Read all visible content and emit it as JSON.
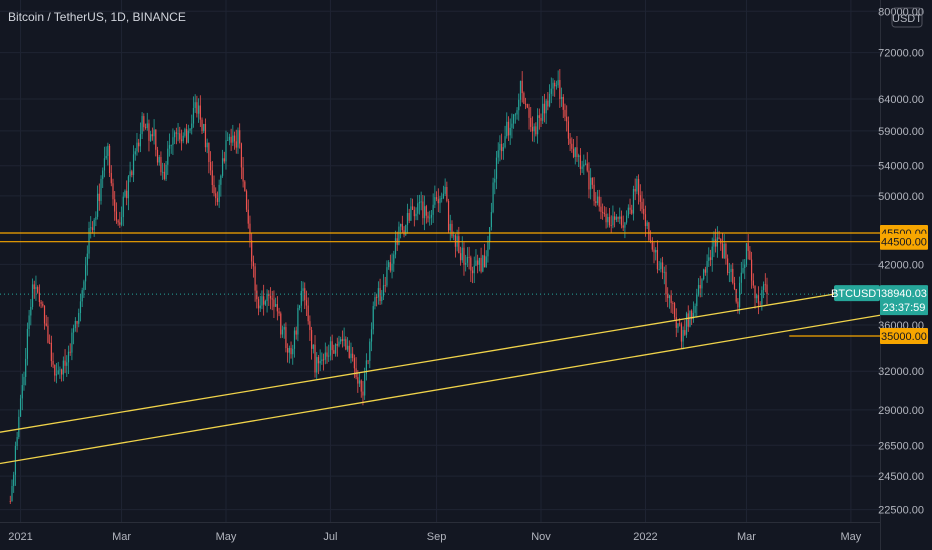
{
  "chart_data": {
    "type": "candlestick",
    "title": "Bitcoin / TetherUS, 1D, BINANCE",
    "symbol": "BTCUSDT",
    "currency": "USDT",
    "y_scale": "log",
    "ylim": [
      21800,
      81500
    ],
    "y_ticks": [
      {
        "value": 80000,
        "label": "80000.00"
      },
      {
        "value": 72000,
        "label": "72000.00"
      },
      {
        "value": 64000,
        "label": "64000.00"
      },
      {
        "value": 59000,
        "label": "59000.00"
      },
      {
        "value": 54000,
        "label": "54000.00"
      },
      {
        "value": 50000,
        "label": "50000.00"
      },
      {
        "value": 42000,
        "label": "42000.00"
      },
      {
        "value": 36000,
        "label": "36000.00"
      },
      {
        "value": 32000,
        "label": "32000.00"
      },
      {
        "value": 29000,
        "label": "29000.00"
      },
      {
        "value": 26500,
        "label": "26500.00"
      },
      {
        "value": 24500,
        "label": "24500.00"
      },
      {
        "value": 22500,
        "label": "22500.00"
      }
    ],
    "xlim": [
      "2020-12-20",
      "2022-05-18"
    ],
    "x_ticks": [
      {
        "date": "2021-01-01",
        "label": "2021"
      },
      {
        "date": "2021-03-01",
        "label": "Mar"
      },
      {
        "date": "2021-05-01",
        "label": "May"
      },
      {
        "date": "2021-07-01",
        "label": "Jul"
      },
      {
        "date": "2021-09-01",
        "label": "Sep"
      },
      {
        "date": "2021-11-01",
        "label": "Nov"
      },
      {
        "date": "2022-01-01",
        "label": "2022"
      },
      {
        "date": "2022-03-01",
        "label": "Mar"
      },
      {
        "date": "2022-05-01",
        "label": "May"
      }
    ],
    "price_path": [
      [
        "2020-12-26",
        23000
      ],
      [
        "2021-01-03",
        32000
      ],
      [
        "2021-01-08",
        40000
      ],
      [
        "2021-01-14",
        37000
      ],
      [
        "2021-01-21",
        31500
      ],
      [
        "2021-01-29",
        33500
      ],
      [
        "2021-02-05",
        38000
      ],
      [
        "2021-02-10",
        45500
      ],
      [
        "2021-02-16",
        50000
      ],
      [
        "2021-02-21",
        56500
      ],
      [
        "2021-02-26",
        46000
      ],
      [
        "2021-03-03",
        49500
      ],
      [
        "2021-03-13",
        60000
      ],
      [
        "2021-03-20",
        58000
      ],
      [
        "2021-03-25",
        52500
      ],
      [
        "2021-04-01",
        59000
      ],
      [
        "2021-04-08",
        58000
      ],
      [
        "2021-04-14",
        63000
      ],
      [
        "2021-04-20",
        56500
      ],
      [
        "2021-04-25",
        49000
      ],
      [
        "2021-05-01",
        57000
      ],
      [
        "2021-05-08",
        58000
      ],
      [
        "2021-05-12",
        50000
      ],
      [
        "2021-05-19",
        38000
      ],
      [
        "2021-05-25",
        38500
      ],
      [
        "2021-06-01",
        36500
      ],
      [
        "2021-06-08",
        33000
      ],
      [
        "2021-06-15",
        40000
      ],
      [
        "2021-06-22",
        32500
      ],
      [
        "2021-07-01",
        34000
      ],
      [
        "2021-07-10",
        34500
      ],
      [
        "2021-07-20",
        30000
      ],
      [
        "2021-07-26",
        37500
      ],
      [
        "2021-08-01",
        40000
      ],
      [
        "2021-08-10",
        45500
      ],
      [
        "2021-08-20",
        48500
      ],
      [
        "2021-08-28",
        48000
      ],
      [
        "2021-09-06",
        51500
      ],
      [
        "2021-09-08",
        46000
      ],
      [
        "2021-09-21",
        41500
      ],
      [
        "2021-09-29",
        42000
      ],
      [
        "2021-10-06",
        55000
      ],
      [
        "2021-10-15",
        61000
      ],
      [
        "2021-10-20",
        65500
      ],
      [
        "2021-10-27",
        58500
      ],
      [
        "2021-11-03",
        62500
      ],
      [
        "2021-11-10",
        67500
      ],
      [
        "2021-11-18",
        57000
      ],
      [
        "2021-11-26",
        54000
      ],
      [
        "2021-12-04",
        49000
      ],
      [
        "2021-12-10",
        47500
      ],
      [
        "2021-12-20",
        46500
      ],
      [
        "2021-12-27",
        51000
      ],
      [
        "2022-01-05",
        43500
      ],
      [
        "2022-01-10",
        41500
      ],
      [
        "2022-01-22",
        35000
      ],
      [
        "2022-01-27",
        37000
      ],
      [
        "2022-02-05",
        41500
      ],
      [
        "2022-02-10",
        44500
      ],
      [
        "2022-02-16",
        43500
      ],
      [
        "2022-02-24",
        38000
      ],
      [
        "2022-03-01",
        44000
      ],
      [
        "2022-03-07",
        38000
      ],
      [
        "2022-03-10",
        39000
      ],
      [
        "2022-03-13",
        38940
      ]
    ],
    "horizontal_lines": [
      {
        "value": 45500,
        "label": "45500.00",
        "color": "#f7a600"
      },
      {
        "value": 44500,
        "label": "44500.00",
        "color": "#f7a600"
      }
    ],
    "short_line": {
      "value": 35000,
      "label": "35000.00",
      "color": "#f7a600",
      "from": "2022-03-26"
    },
    "trend_lines": [
      {
        "from": [
          "2020-12-20",
          27400
        ],
        "to": [
          "2022-04-25",
          39050
        ],
        "color": "#f0d34a"
      },
      {
        "from": [
          "2020-12-20",
          25300
        ],
        "to": [
          "2022-05-18",
          36900
        ],
        "color": "#f0d34a"
      }
    ],
    "last_price": {
      "value": 38940.03,
      "label": "38940.03",
      "countdown": "23:37:59",
      "color": "#26a69a"
    },
    "colors": {
      "background": "#131722",
      "up": "#26a69a",
      "down": "#ef5350",
      "grid": "#1f2433",
      "text": "#b2b5be"
    }
  }
}
